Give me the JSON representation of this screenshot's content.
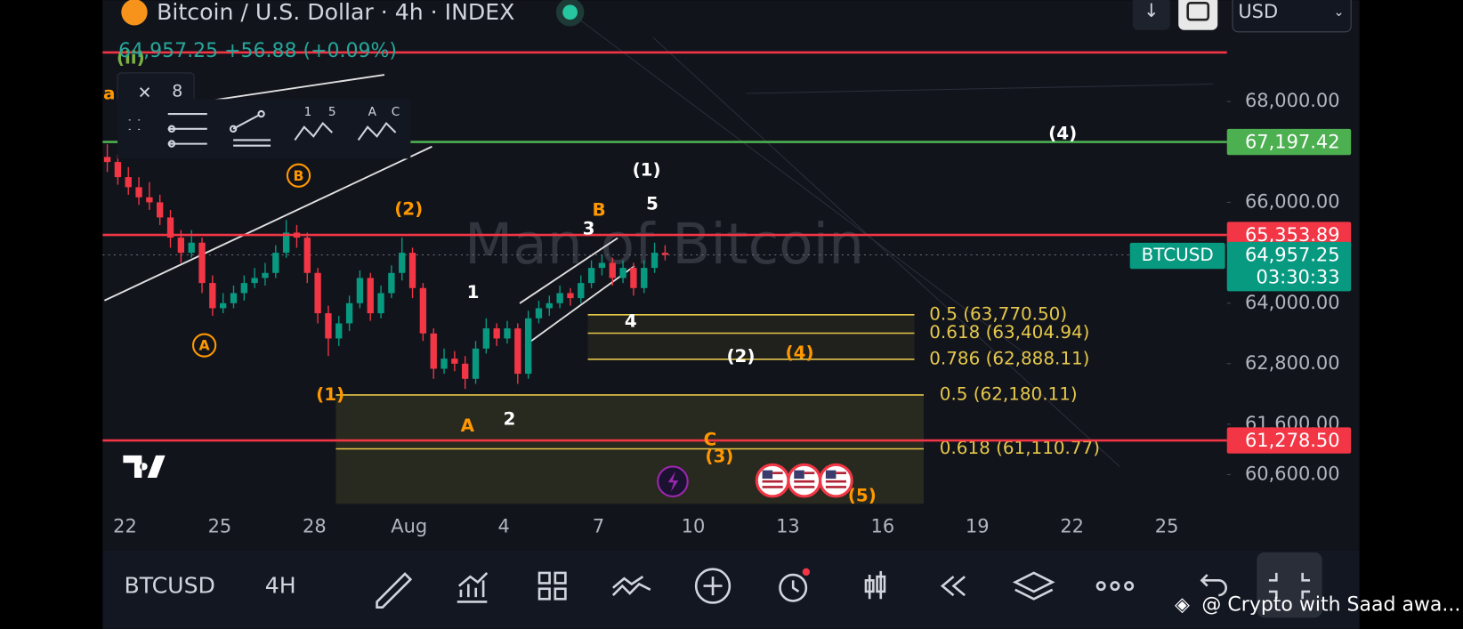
{
  "header": {
    "symbol_title": "Bitcoin / U.S. Dollar · 4h · INDEX",
    "quote": "64,957.25 +56.88 (+0.09%)",
    "currency": "USD"
  },
  "watermark": "Man of Bitcoin",
  "chart": {
    "ylim": [
      60020,
      70010
    ],
    "yticks": [
      {
        "value": 68000,
        "label": "68,000.00"
      },
      {
        "value": 66000,
        "label": "66,000.00"
      },
      {
        "value": 64000,
        "label": "64,000.00"
      },
      {
        "value": 62800,
        "label": "62,800.00"
      },
      {
        "value": 61600,
        "label": "61,600.00"
      },
      {
        "value": 60600,
        "label": "60,600.00"
      }
    ],
    "time_labels": [
      "22",
      "25",
      "28",
      "Aug",
      "4",
      "7",
      "10",
      "13",
      "16",
      "19",
      "22",
      "25"
    ],
    "candles": [
      [
        66900,
        67150,
        66600,
        66800
      ],
      [
        66800,
        66950,
        66350,
        66500
      ],
      [
        66500,
        66700,
        66150,
        66300
      ],
      [
        66300,
        66500,
        65950,
        66100
      ],
      [
        66100,
        66400,
        65850,
        66000
      ],
      [
        66000,
        66150,
        65550,
        65700
      ],
      [
        65700,
        65850,
        65100,
        65300
      ],
      [
        65300,
        65450,
        64800,
        65000
      ],
      [
        65000,
        65450,
        64900,
        65200
      ],
      [
        65200,
        65300,
        64200,
        64400
      ],
      [
        64400,
        64550,
        63750,
        63900
      ],
      [
        63900,
        64200,
        63800,
        64000
      ],
      [
        64000,
        64350,
        63900,
        64200
      ],
      [
        64200,
        64550,
        64050,
        64400
      ],
      [
        64400,
        64700,
        64300,
        64500
      ],
      [
        64500,
        64800,
        64350,
        64600
      ],
      [
        64600,
        65150,
        64500,
        65000
      ],
      [
        65000,
        65650,
        64900,
        65400
      ],
      [
        65400,
        65550,
        65100,
        65300
      ],
      [
        65300,
        65400,
        64400,
        64600
      ],
      [
        64600,
        64700,
        63600,
        63800
      ],
      [
        63800,
        63950,
        62950,
        63300
      ],
      [
        63300,
        63750,
        63150,
        63600
      ],
      [
        63600,
        64150,
        63450,
        64000
      ],
      [
        64000,
        64650,
        63900,
        64500
      ],
      [
        64500,
        64600,
        63650,
        63800
      ],
      [
        63800,
        64350,
        63700,
        64200
      ],
      [
        64200,
        64750,
        64100,
        64600
      ],
      [
        64600,
        65300,
        64450,
        65000
      ],
      [
        65000,
        65100,
        64100,
        64300
      ],
      [
        64300,
        64400,
        63250,
        63400
      ],
      [
        63400,
        63500,
        62500,
        62700
      ],
      [
        62700,
        63100,
        62600,
        62900
      ],
      [
        62900,
        63050,
        62650,
        62800
      ],
      [
        62800,
        62950,
        62300,
        62500
      ],
      [
        62500,
        63250,
        62400,
        63100
      ],
      [
        63100,
        63700,
        63000,
        63500
      ],
      [
        63500,
        63600,
        63150,
        63300
      ],
      [
        63300,
        63650,
        63200,
        63500
      ],
      [
        63500,
        63600,
        62400,
        62600
      ],
      [
        62600,
        63850,
        62500,
        63700
      ],
      [
        63700,
        64050,
        63600,
        63900
      ],
      [
        63900,
        64150,
        63750,
        64000
      ],
      [
        64000,
        64350,
        63900,
        64200
      ],
      [
        64200,
        64300,
        63950,
        64100
      ],
      [
        64100,
        64550,
        64000,
        64400
      ],
      [
        64400,
        64850,
        64300,
        64700
      ],
      [
        64700,
        64950,
        64550,
        64800
      ],
      [
        64800,
        64900,
        64350,
        64500
      ],
      [
        64500,
        64850,
        64400,
        64700
      ],
      [
        64700,
        64800,
        64150,
        64300
      ],
      [
        64300,
        64850,
        64200,
        64700
      ],
      [
        64700,
        65200,
        64600,
        65000
      ],
      [
        65000,
        65150,
        64850,
        64957.25
      ]
    ],
    "price_lines": [
      {
        "value": 68973,
        "color": "#f23645"
      },
      {
        "value": 67197.42,
        "label": "67,197.42",
        "color": "#4caf50"
      },
      {
        "value": 65353.89,
        "label": "65,353.89",
        "color": "#f23645"
      },
      {
        "value": 61278.5,
        "label": "61,278.50",
        "color": "#f23645"
      }
    ],
    "last_price": {
      "value": 64957.25,
      "label": "64,957.25",
      "countdown": "03:30:33",
      "symbol": "BTCUSD",
      "color": "#089981"
    },
    "fib_levels": [
      {
        "value": 63770.5,
        "label": "0.5 (63,770.50)"
      },
      {
        "value": 63404.94,
        "label": "0.618 (63,404.94)"
      },
      {
        "value": 62888.11,
        "label": "0.786 (62,888.11)"
      },
      {
        "value": 62180.11,
        "label": "0.5 (62,180.11)"
      },
      {
        "value": 61110.77,
        "label": "0.618 (61,110.77)"
      }
    ],
    "annotations": [
      {
        "text": "(ii)",
        "color": "#7cb342"
      },
      {
        "text": "a",
        "color": "#ff9800"
      },
      {
        "text": "B",
        "color": "#ff9800",
        "circled": true
      },
      {
        "text": "A",
        "color": "#ff9800",
        "circled": true
      },
      {
        "text": "(2)",
        "color": "#ff9800"
      },
      {
        "text": "1",
        "color": "#ffffff"
      },
      {
        "text": "2",
        "color": "#ffffff"
      },
      {
        "text": "A",
        "color": "#ff9800"
      },
      {
        "text": "(1)",
        "color": "#ff9800"
      },
      {
        "text": "(1)",
        "color": "#ffffff"
      },
      {
        "text": "5",
        "color": "#ffffff"
      },
      {
        "text": "B",
        "color": "#ff9800"
      },
      {
        "text": "3",
        "color": "#ffffff"
      },
      {
        "text": "4",
        "color": "#ffffff"
      },
      {
        "text": "(2)",
        "color": "#ffffff"
      },
      {
        "text": "(4)",
        "color": "#ff9800"
      },
      {
        "text": "(4)",
        "color": "#ffffff"
      },
      {
        "text": "C",
        "color": "#ff9800"
      },
      {
        "text": "(3)",
        "color": "#ff9800"
      },
      {
        "text": "(5)",
        "color": "#ff9800"
      }
    ]
  },
  "drawing_toolbar": {
    "close_count": "8",
    "labels": [
      "1",
      "5",
      "A",
      "C"
    ]
  },
  "bottom_toolbar": {
    "symbol": "BTCUSD",
    "interval": "4H"
  },
  "credit": "@ Crypto with Saad awa..."
}
